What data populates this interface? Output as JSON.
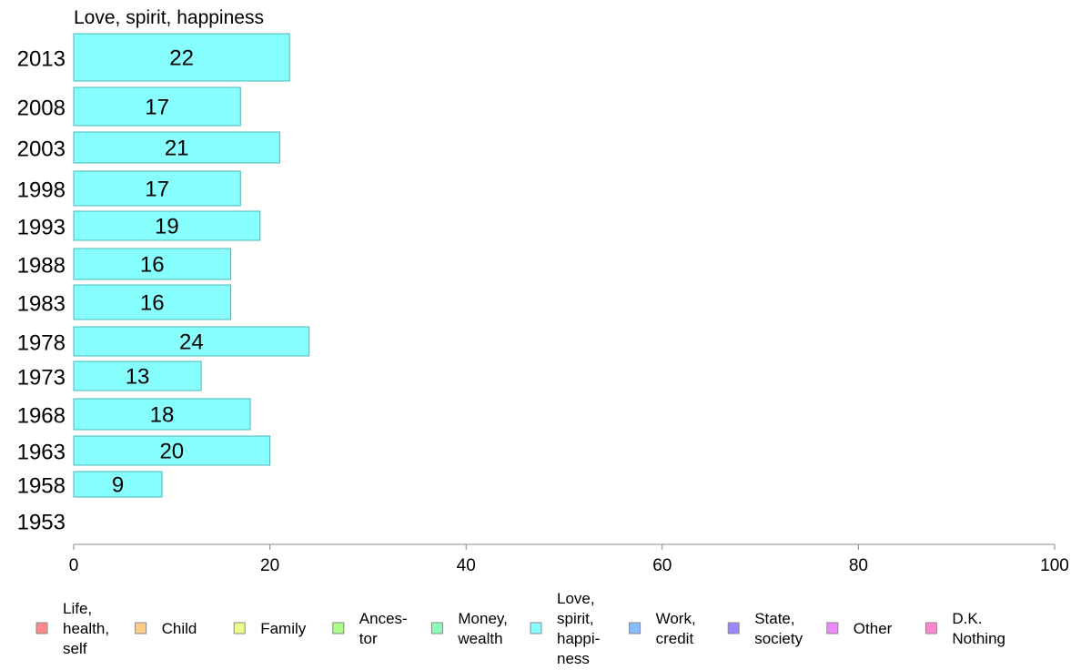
{
  "chart_data": {
    "type": "bar",
    "orientation": "horizontal",
    "title": "Love, spirit, happiness",
    "categories": [
      "2013",
      "2008",
      "2003",
      "1998",
      "1993",
      "1988",
      "1983",
      "1978",
      "1973",
      "1968",
      "1963",
      "1958",
      "1953"
    ],
    "series": [
      {
        "name": "Love, spirit, happiness",
        "values": [
          22,
          17,
          21,
          17,
          19,
          16,
          16,
          24,
          13,
          18,
          20,
          9,
          null
        ],
        "labels": [
          "22",
          "17",
          "21",
          "17",
          "19",
          "16",
          "16",
          "24",
          "13",
          "18",
          "20",
          "9",
          ""
        ]
      }
    ],
    "xlim": [
      0,
      100
    ],
    "xticks": [
      "0",
      "20",
      "40",
      "60",
      "80",
      "100"
    ],
    "grid": false,
    "legend_position": "bottom",
    "legend": [
      {
        "lines": [
          "Life,",
          "health,",
          "self"
        ],
        "color": "#ff8888"
      },
      {
        "lines": [
          "Child"
        ],
        "color": "#ffcc88"
      },
      {
        "lines": [
          "Family"
        ],
        "color": "#eeff88"
      },
      {
        "lines": [
          "Ances-",
          "tor"
        ],
        "color": "#aaff88"
      },
      {
        "lines": [
          "Money,",
          "wealth"
        ],
        "color": "#88ffbb"
      },
      {
        "lines": [
          "Love,",
          "spirit,",
          "happi-",
          "ness"
        ],
        "color": "#88ffff"
      },
      {
        "lines": [
          "Work,",
          "credit"
        ],
        "color": "#88bbff"
      },
      {
        "lines": [
          "State,",
          "society"
        ],
        "color": "#9988ff"
      },
      {
        "lines": [
          "Other"
        ],
        "color": "#ee88ff"
      },
      {
        "lines": [
          "D.K.",
          "Nothing"
        ],
        "color": "#ff88cc"
      }
    ]
  }
}
